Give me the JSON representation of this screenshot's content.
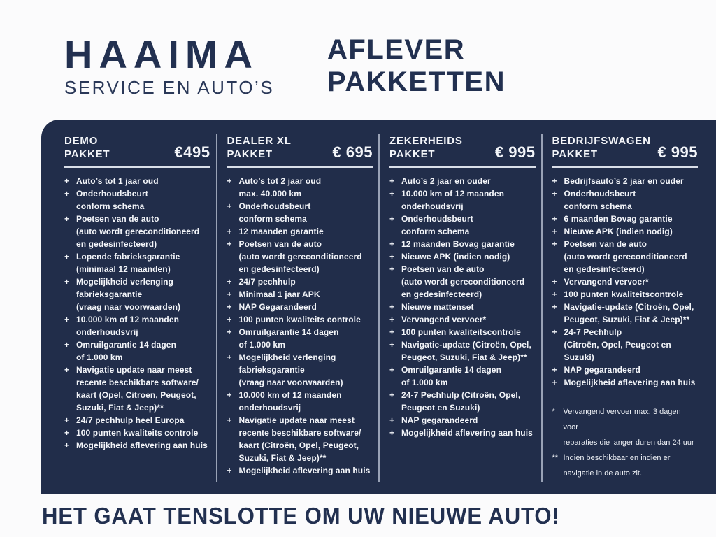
{
  "header": {
    "brand_name": "HAAIMA",
    "brand_subtitle": "SERVICE EN AUTO’S",
    "title_line1": "AFLEVER",
    "title_line2": "PAKKETTEN"
  },
  "colors": {
    "panel_navy": "#212d4a",
    "text_navy": "#223050",
    "text_on_navy": "#f3f5f9",
    "divider": "#99a2b6",
    "page_background": "#fbfbfc"
  },
  "packages": [
    {
      "id": "demo",
      "title": "DEMO\nPAKKET",
      "price": "€495",
      "items": [
        "Auto’s tot 1 jaar oud",
        "Onderhoudsbeurt\nconform schema",
        "Poetsen van de auto\n(auto wordt gereconditioneerd\nen gedesinfecteerd)",
        "Lopende fabrieksgarantie\n(minimaal 12 maanden)",
        "Mogelijkheid verlenging\nfabrieksgarantie\n(vraag naar voorwaarden)",
        "10.000 km of 12 maanden\nonderhoudsvrij",
        "Omruilgarantie 14 dagen\nof 1.000 km",
        "Navigatie update naar meest\nrecente beschikbare software/\nkaart (Opel, Citroen,  Peugeot,\nSuzuki, Fiat & Jeep)**",
        "24/7 pechhulp heel Europa",
        "100 punten kwaliteits controle",
        "Mogelijkheid aflevering aan huis"
      ]
    },
    {
      "id": "dealer-xl",
      "title": "DEALER XL\nPAKKET",
      "price": "€ 695",
      "items": [
        "Auto’s tot 2 jaar oud\nmax. 40.000 km",
        "Onderhoudsbeurt\nconform schema",
        "12 maanden garantie",
        "Poetsen van de auto\n(auto wordt gereconditioneerd\nen gedesinfecteerd)",
        "24/7 pechhulp",
        "Minimaal 1 jaar APK",
        "NAP Gegarandeerd",
        "100 punten kwaliteits controle",
        "Omruilgarantie 14 dagen\nof 1.000 km",
        "Mogelijkheid verlenging\nfabrieksgarantie\n(vraag naar voorwaarden)",
        "10.000 km of 12 maanden\nonderhoudsvrij",
        "Navigatie update naar meest\nrecente beschikbare software/\nkaart (Citroën, Opel, Peugeot,\nSuzuki, Fiat & Jeep)**",
        "Mogelijkheid aflevering aan huis"
      ]
    },
    {
      "id": "zekerheids",
      "title": "ZEKERHEIDS\nPAKKET",
      "price": "€ 995",
      "items": [
        "Auto’s 2 jaar en ouder",
        "10.000 km of 12 maanden\nonderhoudsvrij",
        "Onderhoudsbeurt\nconform schema",
        "12 maanden Bovag garantie",
        "Nieuwe APK (indien nodig)",
        "Poetsen van de auto\n(auto wordt gereconditioneerd\nen gedesinfecteerd)",
        "Nieuwe mattenset",
        "Vervangend vervoer*",
        "100 punten kwaliteitscontrole",
        "Navigatie-update (Citroën, Opel,\nPeugeot, Suzuki, Fiat & Jeep)**",
        "Omruilgarantie 14 dagen\nof 1.000 km",
        "24-7 Pechhulp (Citroën, Opel,\nPeugeot en Suzuki)",
        "NAP gegarandeerd",
        "Mogelijkheid aflevering aan huis"
      ]
    },
    {
      "id": "bedrijfswagen",
      "title": "BEDRIJFSWAGEN\nPAKKET",
      "price": "€ 995",
      "items": [
        "Bedrijfsauto’s 2 jaar en ouder",
        "Onderhoudsbeurt\nconform schema",
        "6 maanden Bovag garantie",
        "Nieuwe APK (indien nodig)",
        "Poetsen van de auto\n(auto wordt gereconditioneerd\nen gedesinfecteerd)",
        "Vervangend vervoer*",
        "100 punten kwaliteitscontrole",
        "Navigatie-update (Citroën, Opel,\nPeugeot, Suzuki, Fiat & Jeep)**",
        "24-7 Pechhulp\n(Citroën, Opel, Peugeot en Suzuki)",
        "NAP gegarandeerd",
        "Mogelijkheid aflevering aan huis"
      ]
    }
  ],
  "footnotes": [
    {
      "marker": "*",
      "text": "Vervangend vervoer max. 3 dagen voor\nreparaties die langer duren dan 24 uur"
    },
    {
      "marker": "**",
      "text": "Indien beschikbaar en indien er\nnavigatie in de auto zit."
    }
  ],
  "footer": {
    "tagline": "HET GAAT TENSLOTTE OM UW NIEUWE AUTO!"
  }
}
